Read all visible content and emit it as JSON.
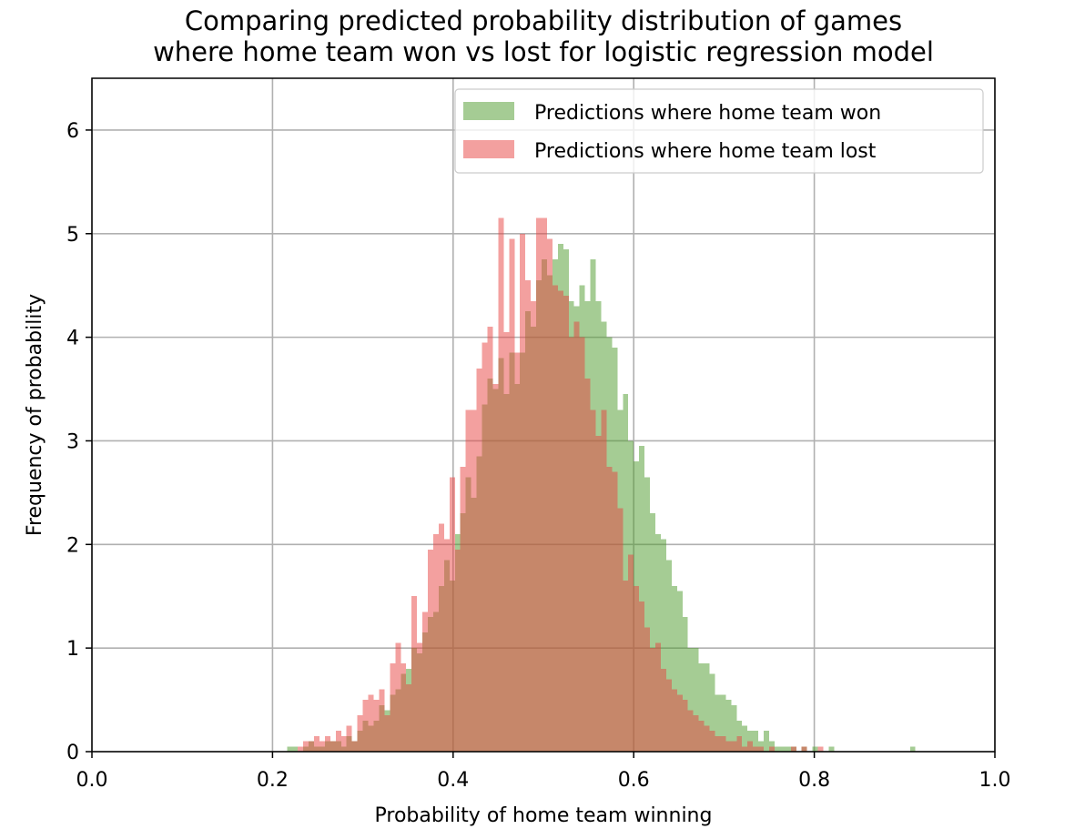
{
  "chart_data": {
    "type": "bar",
    "histogram": true,
    "title_lines": [
      "Comparing predicted probability distribution of games",
      "where home team won vs lost for logistic regression model"
    ],
    "xlabel": "Probability of home team winning",
    "ylabel": "Frequency of probability",
    "xlim": [
      0.0,
      1.0
    ],
    "ylim": [
      0,
      6.5
    ],
    "xticks": [
      0.0,
      0.2,
      0.4,
      0.6,
      0.8,
      1.0
    ],
    "xtick_labels": [
      "0.0",
      "0.2",
      "0.4",
      "0.6",
      "0.8",
      "1.0"
    ],
    "yticks": [
      0,
      1,
      2,
      3,
      4,
      5,
      6
    ],
    "ytick_labels": [
      "0",
      "1",
      "2",
      "3",
      "4",
      "5",
      "6"
    ],
    "grid": true,
    "legend_position": "top-right",
    "bin_width": 0.006,
    "series": [
      {
        "name": "Predictions where home team won",
        "color": "#4c9a2a",
        "opacity": 0.5,
        "bins": [
          {
            "x": 0.216,
            "y": 0.05
          },
          {
            "x": 0.222,
            "y": 0.05
          },
          {
            "x": 0.234,
            "y": 0.05
          },
          {
            "x": 0.24,
            "y": 0.1
          },
          {
            "x": 0.246,
            "y": 0.05
          },
          {
            "x": 0.252,
            "y": 0.05
          },
          {
            "x": 0.258,
            "y": 0.1
          },
          {
            "x": 0.264,
            "y": 0.1
          },
          {
            "x": 0.27,
            "y": 0.1
          },
          {
            "x": 0.276,
            "y": 0.05
          },
          {
            "x": 0.282,
            "y": 0.15
          },
          {
            "x": 0.288,
            "y": 0.1
          },
          {
            "x": 0.294,
            "y": 0.2
          },
          {
            "x": 0.3,
            "y": 0.3
          },
          {
            "x": 0.306,
            "y": 0.25
          },
          {
            "x": 0.312,
            "y": 0.3
          },
          {
            "x": 0.318,
            "y": 0.45
          },
          {
            "x": 0.324,
            "y": 0.4
          },
          {
            "x": 0.33,
            "y": 0.55
          },
          {
            "x": 0.336,
            "y": 0.6
          },
          {
            "x": 0.342,
            "y": 0.75
          },
          {
            "x": 0.348,
            "y": 0.8
          },
          {
            "x": 0.354,
            "y": 1.0
          },
          {
            "x": 0.36,
            "y": 0.95
          },
          {
            "x": 0.366,
            "y": 1.15
          },
          {
            "x": 0.372,
            "y": 1.3
          },
          {
            "x": 0.378,
            "y": 1.35
          },
          {
            "x": 0.384,
            "y": 1.6
          },
          {
            "x": 0.39,
            "y": 1.85
          },
          {
            "x": 0.396,
            "y": 1.65
          },
          {
            "x": 0.402,
            "y": 2.1
          },
          {
            "x": 0.408,
            "y": 2.3
          },
          {
            "x": 0.414,
            "y": 2.65
          },
          {
            "x": 0.42,
            "y": 2.45
          },
          {
            "x": 0.426,
            "y": 2.85
          },
          {
            "x": 0.432,
            "y": 3.35
          },
          {
            "x": 0.438,
            "y": 3.6
          },
          {
            "x": 0.444,
            "y": 3.5
          },
          {
            "x": 0.45,
            "y": 3.8
          },
          {
            "x": 0.456,
            "y": 3.45
          },
          {
            "x": 0.462,
            "y": 3.85
          },
          {
            "x": 0.468,
            "y": 3.55
          },
          {
            "x": 0.474,
            "y": 3.85
          },
          {
            "x": 0.48,
            "y": 4.25
          },
          {
            "x": 0.486,
            "y": 4.1
          },
          {
            "x": 0.492,
            "y": 4.55
          },
          {
            "x": 0.498,
            "y": 4.75
          },
          {
            "x": 0.504,
            "y": 4.6
          },
          {
            "x": 0.51,
            "y": 4.75
          },
          {
            "x": 0.516,
            "y": 4.9
          },
          {
            "x": 0.522,
            "y": 4.85
          },
          {
            "x": 0.528,
            "y": 4.35
          },
          {
            "x": 0.534,
            "y": 4.3
          },
          {
            "x": 0.54,
            "y": 4.5
          },
          {
            "x": 0.546,
            "y": 4.35
          },
          {
            "x": 0.552,
            "y": 4.75
          },
          {
            "x": 0.558,
            "y": 4.35
          },
          {
            "x": 0.564,
            "y": 4.15
          },
          {
            "x": 0.57,
            "y": 4.0
          },
          {
            "x": 0.576,
            "y": 3.9
          },
          {
            "x": 0.582,
            "y": 3.3
          },
          {
            "x": 0.588,
            "y": 3.45
          },
          {
            "x": 0.594,
            "y": 3.0
          },
          {
            "x": 0.6,
            "y": 2.8
          },
          {
            "x": 0.606,
            "y": 2.95
          },
          {
            "x": 0.612,
            "y": 2.65
          },
          {
            "x": 0.618,
            "y": 2.3
          },
          {
            "x": 0.624,
            "y": 2.1
          },
          {
            "x": 0.63,
            "y": 2.05
          },
          {
            "x": 0.636,
            "y": 1.85
          },
          {
            "x": 0.642,
            "y": 1.6
          },
          {
            "x": 0.648,
            "y": 1.55
          },
          {
            "x": 0.654,
            "y": 1.3
          },
          {
            "x": 0.66,
            "y": 1.0
          },
          {
            "x": 0.666,
            "y": 1.0
          },
          {
            "x": 0.672,
            "y": 0.85
          },
          {
            "x": 0.678,
            "y": 0.85
          },
          {
            "x": 0.684,
            "y": 0.75
          },
          {
            "x": 0.69,
            "y": 0.55
          },
          {
            "x": 0.696,
            "y": 0.55
          },
          {
            "x": 0.702,
            "y": 0.5
          },
          {
            "x": 0.708,
            "y": 0.45
          },
          {
            "x": 0.714,
            "y": 0.3
          },
          {
            "x": 0.72,
            "y": 0.25
          },
          {
            "x": 0.726,
            "y": 0.2
          },
          {
            "x": 0.732,
            "y": 0.2
          },
          {
            "x": 0.738,
            "y": 0.1
          },
          {
            "x": 0.744,
            "y": 0.2
          },
          {
            "x": 0.75,
            "y": 0.1
          },
          {
            "x": 0.756,
            "y": 0.05
          },
          {
            "x": 0.762,
            "y": 0.05
          },
          {
            "x": 0.768,
            "y": 0.05
          },
          {
            "x": 0.774,
            "y": 0.05
          },
          {
            "x": 0.786,
            "y": 0.05
          },
          {
            "x": 0.798,
            "y": 0.05
          },
          {
            "x": 0.816,
            "y": 0.05
          },
          {
            "x": 0.906,
            "y": 0.05
          }
        ]
      },
      {
        "name": "Predictions where home team lost",
        "color": "#e8423f",
        "opacity": 0.5,
        "bins": [
          {
            "x": 0.228,
            "y": 0.05
          },
          {
            "x": 0.234,
            "y": 0.1
          },
          {
            "x": 0.24,
            "y": 0.1
          },
          {
            "x": 0.246,
            "y": 0.15
          },
          {
            "x": 0.252,
            "y": 0.1
          },
          {
            "x": 0.258,
            "y": 0.15
          },
          {
            "x": 0.264,
            "y": 0.1
          },
          {
            "x": 0.27,
            "y": 0.2
          },
          {
            "x": 0.276,
            "y": 0.15
          },
          {
            "x": 0.282,
            "y": 0.25
          },
          {
            "x": 0.288,
            "y": 0.1
          },
          {
            "x": 0.294,
            "y": 0.35
          },
          {
            "x": 0.3,
            "y": 0.5
          },
          {
            "x": 0.306,
            "y": 0.55
          },
          {
            "x": 0.312,
            "y": 0.5
          },
          {
            "x": 0.318,
            "y": 0.6
          },
          {
            "x": 0.324,
            "y": 0.35
          },
          {
            "x": 0.33,
            "y": 0.85
          },
          {
            "x": 0.336,
            "y": 1.05
          },
          {
            "x": 0.342,
            "y": 0.85
          },
          {
            "x": 0.348,
            "y": 0.65
          },
          {
            "x": 0.354,
            "y": 1.5
          },
          {
            "x": 0.36,
            "y": 1.05
          },
          {
            "x": 0.366,
            "y": 1.35
          },
          {
            "x": 0.372,
            "y": 1.95
          },
          {
            "x": 0.378,
            "y": 2.1
          },
          {
            "x": 0.384,
            "y": 2.2
          },
          {
            "x": 0.39,
            "y": 2.05
          },
          {
            "x": 0.396,
            "y": 2.65
          },
          {
            "x": 0.402,
            "y": 1.95
          },
          {
            "x": 0.408,
            "y": 2.75
          },
          {
            "x": 0.414,
            "y": 3.3
          },
          {
            "x": 0.42,
            "y": 3.3
          },
          {
            "x": 0.426,
            "y": 3.7
          },
          {
            "x": 0.432,
            "y": 3.95
          },
          {
            "x": 0.438,
            "y": 4.1
          },
          {
            "x": 0.444,
            "y": 3.55
          },
          {
            "x": 0.45,
            "y": 5.15
          },
          {
            "x": 0.456,
            "y": 4.05
          },
          {
            "x": 0.462,
            "y": 4.95
          },
          {
            "x": 0.468,
            "y": 3.85
          },
          {
            "x": 0.474,
            "y": 5.0
          },
          {
            "x": 0.48,
            "y": 4.55
          },
          {
            "x": 0.486,
            "y": 4.35
          },
          {
            "x": 0.492,
            "y": 5.15
          },
          {
            "x": 0.498,
            "y": 5.15
          },
          {
            "x": 0.504,
            "y": 4.95
          },
          {
            "x": 0.51,
            "y": 4.5
          },
          {
            "x": 0.516,
            "y": 4.45
          },
          {
            "x": 0.522,
            "y": 4.4
          },
          {
            "x": 0.528,
            "y": 4.0
          },
          {
            "x": 0.534,
            "y": 4.15
          },
          {
            "x": 0.54,
            "y": 4.0
          },
          {
            "x": 0.546,
            "y": 3.6
          },
          {
            "x": 0.552,
            "y": 3.3
          },
          {
            "x": 0.558,
            "y": 3.05
          },
          {
            "x": 0.564,
            "y": 3.3
          },
          {
            "x": 0.57,
            "y": 2.75
          },
          {
            "x": 0.576,
            "y": 2.7
          },
          {
            "x": 0.582,
            "y": 2.35
          },
          {
            "x": 0.588,
            "y": 1.65
          },
          {
            "x": 0.594,
            "y": 1.9
          },
          {
            "x": 0.6,
            "y": 1.6
          },
          {
            "x": 0.606,
            "y": 1.45
          },
          {
            "x": 0.612,
            "y": 1.2
          },
          {
            "x": 0.618,
            "y": 1.0
          },
          {
            "x": 0.624,
            "y": 1.05
          },
          {
            "x": 0.63,
            "y": 0.8
          },
          {
            "x": 0.636,
            "y": 0.7
          },
          {
            "x": 0.642,
            "y": 0.6
          },
          {
            "x": 0.648,
            "y": 0.55
          },
          {
            "x": 0.654,
            "y": 0.5
          },
          {
            "x": 0.66,
            "y": 0.4
          },
          {
            "x": 0.666,
            "y": 0.35
          },
          {
            "x": 0.672,
            "y": 0.3
          },
          {
            "x": 0.678,
            "y": 0.25
          },
          {
            "x": 0.684,
            "y": 0.2
          },
          {
            "x": 0.69,
            "y": 0.15
          },
          {
            "x": 0.696,
            "y": 0.15
          },
          {
            "x": 0.702,
            "y": 0.1
          },
          {
            "x": 0.708,
            "y": 0.1
          },
          {
            "x": 0.714,
            "y": 0.15
          },
          {
            "x": 0.72,
            "y": 0.05
          },
          {
            "x": 0.726,
            "y": 0.1
          },
          {
            "x": 0.732,
            "y": 0.05
          },
          {
            "x": 0.738,
            "y": 0.05
          },
          {
            "x": 0.75,
            "y": 0.05
          },
          {
            "x": 0.774,
            "y": 0.05
          },
          {
            "x": 0.786,
            "y": 0.05
          },
          {
            "x": 0.804,
            "y": 0.05
          }
        ]
      }
    ]
  }
}
